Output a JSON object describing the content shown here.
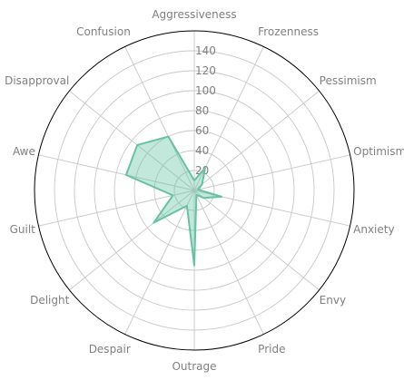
{
  "chart_data": {
    "type": "radar",
    "categories": [
      "Aggressiveness",
      "Frozenness",
      "Pessimism",
      "Optimism",
      "Anxiety",
      "Envy",
      "Pride",
      "Outrage",
      "Despair",
      "Delight",
      "Guilt",
      "Awe",
      "Disapproval",
      "Confusion"
    ],
    "series": [
      {
        "values": [
          10,
          25,
          10,
          4,
          28,
          12,
          5,
          75,
          17,
          52,
          22,
          70,
          73,
          60
        ]
      }
    ],
    "radial_ticks": [
      20,
      40,
      60,
      80,
      100,
      120,
      140
    ],
    "rlim": [
      0,
      160
    ],
    "grid": true,
    "colors": {
      "line": "#66c2a5",
      "fill": "#66c2a5",
      "grid": "#c8c8c8",
      "frame": "#000000",
      "text": "#808080"
    }
  }
}
